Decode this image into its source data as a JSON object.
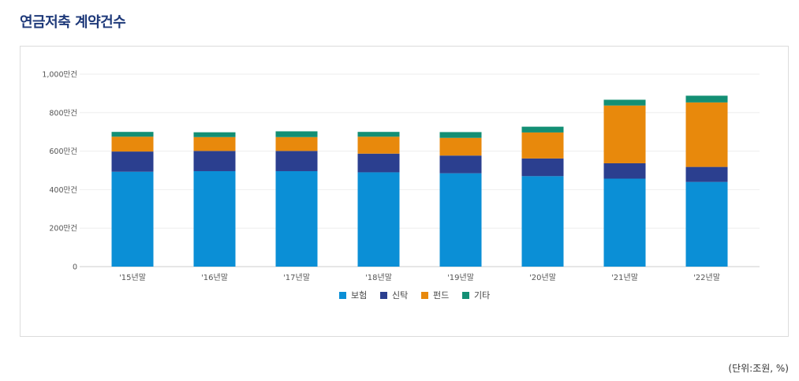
{
  "title": "연금저축 계약건수",
  "unit_note": "(단위:조원, %)",
  "colors": {
    "보험": "#0b8fd6",
    "신탁": "#2b3f8f",
    "펀드": "#e8890c",
    "기타": "#138f74",
    "grid": "#eeeeee",
    "axis": "#cccccc",
    "tick_text": "#555555"
  },
  "chart_data": {
    "type": "bar",
    "stacked": true,
    "categories": [
      "'15년말",
      "'16년말",
      "'17년말",
      "'18년말",
      "'19년말",
      "'20년말",
      "'21년말",
      "'22년말"
    ],
    "series": [
      {
        "name": "보험",
        "values": [
          493,
          496,
          496,
          490,
          485,
          470,
          457,
          440
        ]
      },
      {
        "name": "신탁",
        "values": [
          105,
          105,
          105,
          97,
          92,
          92,
          80,
          78
        ]
      },
      {
        "name": "펀드",
        "values": [
          77,
          72,
          72,
          88,
          92,
          135,
          300,
          335
        ]
      },
      {
        "name": "기타",
        "values": [
          25,
          25,
          30,
          25,
          30,
          30,
          30,
          35
        ]
      }
    ],
    "ylim": [
      0,
      1000
    ],
    "yticks": [
      0,
      200,
      400,
      600,
      800,
      1000
    ],
    "ytick_labels": [
      "0",
      "200만건",
      "400만건",
      "600만건",
      "800만건",
      "1,000만건"
    ],
    "grid": true,
    "legend_position": "bottom"
  }
}
